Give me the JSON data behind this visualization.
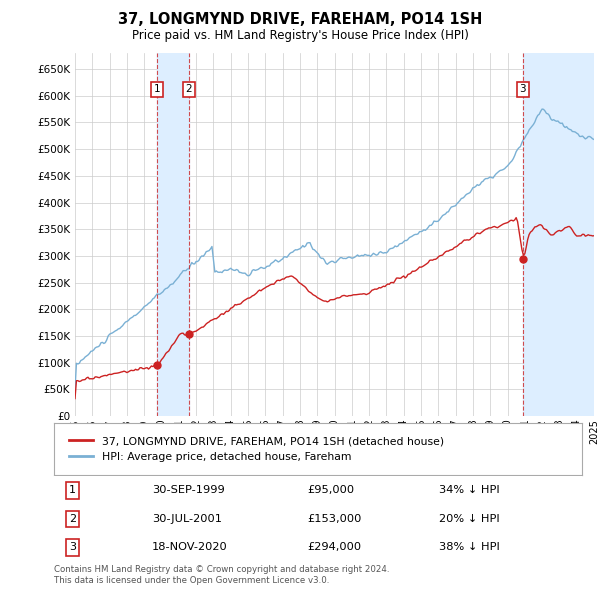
{
  "title": "37, LONGMYND DRIVE, FAREHAM, PO14 1SH",
  "subtitle": "Price paid vs. HM Land Registry's House Price Index (HPI)",
  "ylim": [
    0,
    680000
  ],
  "yticks": [
    0,
    50000,
    100000,
    150000,
    200000,
    250000,
    300000,
    350000,
    400000,
    450000,
    500000,
    550000,
    600000,
    650000
  ],
  "ytick_labels": [
    "£0",
    "£50K",
    "£100K",
    "£150K",
    "£200K",
    "£250K",
    "£300K",
    "£350K",
    "£400K",
    "£450K",
    "£500K",
    "£550K",
    "£600K",
    "£650K"
  ],
  "xlim_start": 1995.0,
  "xlim_end": 2025.0,
  "transactions": [
    {
      "label": "1",
      "date_x": 1999.75,
      "price": 95000
    },
    {
      "label": "2",
      "date_x": 2001.58,
      "price": 153000
    },
    {
      "label": "3",
      "date_x": 2020.88,
      "price": 294000
    }
  ],
  "line_color_red": "#cc2222",
  "line_color_blue": "#7ab0d4",
  "vline_color": "#cc2222",
  "shade_color": "#ddeeff",
  "background_color": "#ffffff",
  "grid_color": "#cccccc",
  "legend_label_red": "37, LONGMYND DRIVE, FAREHAM, PO14 1SH (detached house)",
  "legend_label_blue": "HPI: Average price, detached house, Fareham",
  "footer_line1": "Contains HM Land Registry data © Crown copyright and database right 2024.",
  "footer_line2": "This data is licensed under the Open Government Licence v3.0.",
  "table_rows": [
    [
      "1",
      "30-SEP-1999",
      "£95,000",
      "34% ↓ HPI"
    ],
    [
      "2",
      "30-JUL-2001",
      "£153,000",
      "20% ↓ HPI"
    ],
    [
      "3",
      "18-NOV-2020",
      "£294,000",
      "38% ↓ HPI"
    ]
  ]
}
